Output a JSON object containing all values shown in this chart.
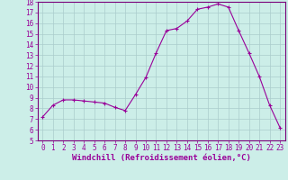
{
  "hours": [
    0,
    1,
    2,
    3,
    4,
    5,
    6,
    7,
    8,
    9,
    10,
    11,
    12,
    13,
    14,
    15,
    16,
    17,
    18,
    19,
    20,
    21,
    22,
    23
  ],
  "values": [
    7.2,
    8.3,
    8.8,
    8.8,
    8.7,
    8.6,
    8.5,
    8.1,
    7.8,
    9.3,
    10.9,
    13.2,
    15.3,
    15.5,
    16.2,
    17.3,
    17.5,
    17.8,
    17.5,
    15.3,
    13.2,
    11.0,
    8.3,
    6.2
  ],
  "line_color": "#990099",
  "marker": "+",
  "marker_size": 3,
  "marker_edge_width": 0.8,
  "bg_color": "#cceee8",
  "grid_color": "#aacccc",
  "ylim": [
    5,
    18
  ],
  "xlim": [
    -0.5,
    23.5
  ],
  "yticks": [
    5,
    6,
    7,
    8,
    9,
    10,
    11,
    12,
    13,
    14,
    15,
    16,
    17,
    18
  ],
  "xticks": [
    0,
    1,
    2,
    3,
    4,
    5,
    6,
    7,
    8,
    9,
    10,
    11,
    12,
    13,
    14,
    15,
    16,
    17,
    18,
    19,
    20,
    21,
    22,
    23
  ],
  "xlabel": "Windchill (Refroidissement éolien,°C)",
  "tick_fontsize": 5.5,
  "label_fontsize": 6.5,
  "line_width": 0.8,
  "spine_color": "#7a007a"
}
